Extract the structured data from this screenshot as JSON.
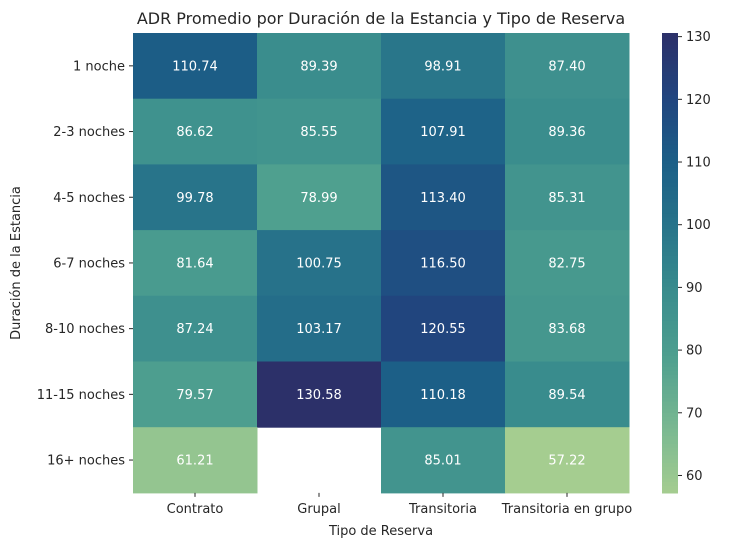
{
  "chart_data": {
    "type": "heatmap",
    "title": "ADR Promedio por Duración de la Estancia y Tipo de Reserva",
    "xlabel": "Tipo de Reserva",
    "ylabel": "Duración de la Estancia",
    "x_categories": [
      "Contrato",
      "Grupal",
      "Transitoria",
      "Transitoria en grupo"
    ],
    "y_categories": [
      "1 noche",
      "2-3 noches",
      "4-5 noches",
      "6-7 noches",
      "8-10 noches",
      "11-15 noches",
      "16+ noches"
    ],
    "values": [
      [
        110.74,
        89.39,
        98.91,
        87.4
      ],
      [
        86.62,
        85.55,
        107.91,
        89.36
      ],
      [
        99.78,
        78.99,
        113.4,
        85.31
      ],
      [
        81.64,
        100.75,
        116.5,
        82.75
      ],
      [
        87.24,
        103.17,
        120.55,
        83.68
      ],
      [
        79.57,
        130.58,
        110.18,
        89.54
      ],
      [
        61.21,
        null,
        85.01,
        57.22
      ]
    ],
    "value_labels": [
      [
        "110.74",
        "89.39",
        "98.91",
        "87.40"
      ],
      [
        "86.62",
        "85.55",
        "107.91",
        "89.36"
      ],
      [
        "99.78",
        "78.99",
        "113.40",
        "85.31"
      ],
      [
        "81.64",
        "100.75",
        "116.50",
        "82.75"
      ],
      [
        "87.24",
        "103.17",
        "120.55",
        "83.68"
      ],
      [
        "79.57",
        "130.58",
        "110.18",
        "89.54"
      ],
      [
        "61.21",
        "",
        "85.01",
        "57.22"
      ]
    ],
    "colormap": "crest",
    "color_range": [
      57.22,
      130.58
    ],
    "colorbar_ticks": [
      "60",
      "70",
      "80",
      "90",
      "100",
      "110",
      "120",
      "130"
    ]
  }
}
